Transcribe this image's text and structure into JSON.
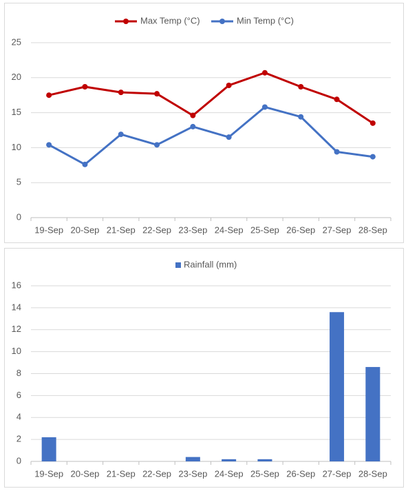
{
  "charts": [
    {
      "chart_data": {
        "type": "line",
        "categories": [
          "19-Sep",
          "20-Sep",
          "21-Sep",
          "22-Sep",
          "23-Sep",
          "24-Sep",
          "25-Sep",
          "26-Sep",
          "27-Sep",
          "28-Sep"
        ],
        "series": [
          {
            "name": "Max Temp (°C)",
            "color": "#c00000",
            "values": [
              17.5,
              18.7,
              17.9,
              17.7,
              14.6,
              18.9,
              20.7,
              18.7,
              16.9,
              13.5
            ]
          },
          {
            "name": "Min Temp (°C)",
            "color": "#4472c4",
            "values": [
              10.4,
              7.6,
              11.9,
              10.4,
              13.0,
              11.5,
              15.8,
              14.4,
              9.4,
              8.7
            ]
          }
        ],
        "ylim": [
          0,
          25
        ],
        "yticks": [
          0,
          5,
          10,
          15,
          20,
          25
        ],
        "grid": true,
        "legend": "top"
      }
    },
    {
      "chart_data": {
        "type": "bar",
        "categories": [
          "19-Sep",
          "20-Sep",
          "21-Sep",
          "22-Sep",
          "23-Sep",
          "24-Sep",
          "25-Sep",
          "26-Sep",
          "27-Sep",
          "28-Sep"
        ],
        "series": [
          {
            "name": "Rainfall (mm)",
            "color": "#4472c4",
            "values": [
              2.2,
              0,
              0,
              0,
              0.4,
              0.2,
              0.2,
              0,
              13.6,
              8.6
            ]
          }
        ],
        "ylim": [
          0,
          16
        ],
        "yticks": [
          0,
          2,
          4,
          6,
          8,
          10,
          12,
          14,
          16
        ],
        "grid": true,
        "legend": "top"
      }
    }
  ]
}
